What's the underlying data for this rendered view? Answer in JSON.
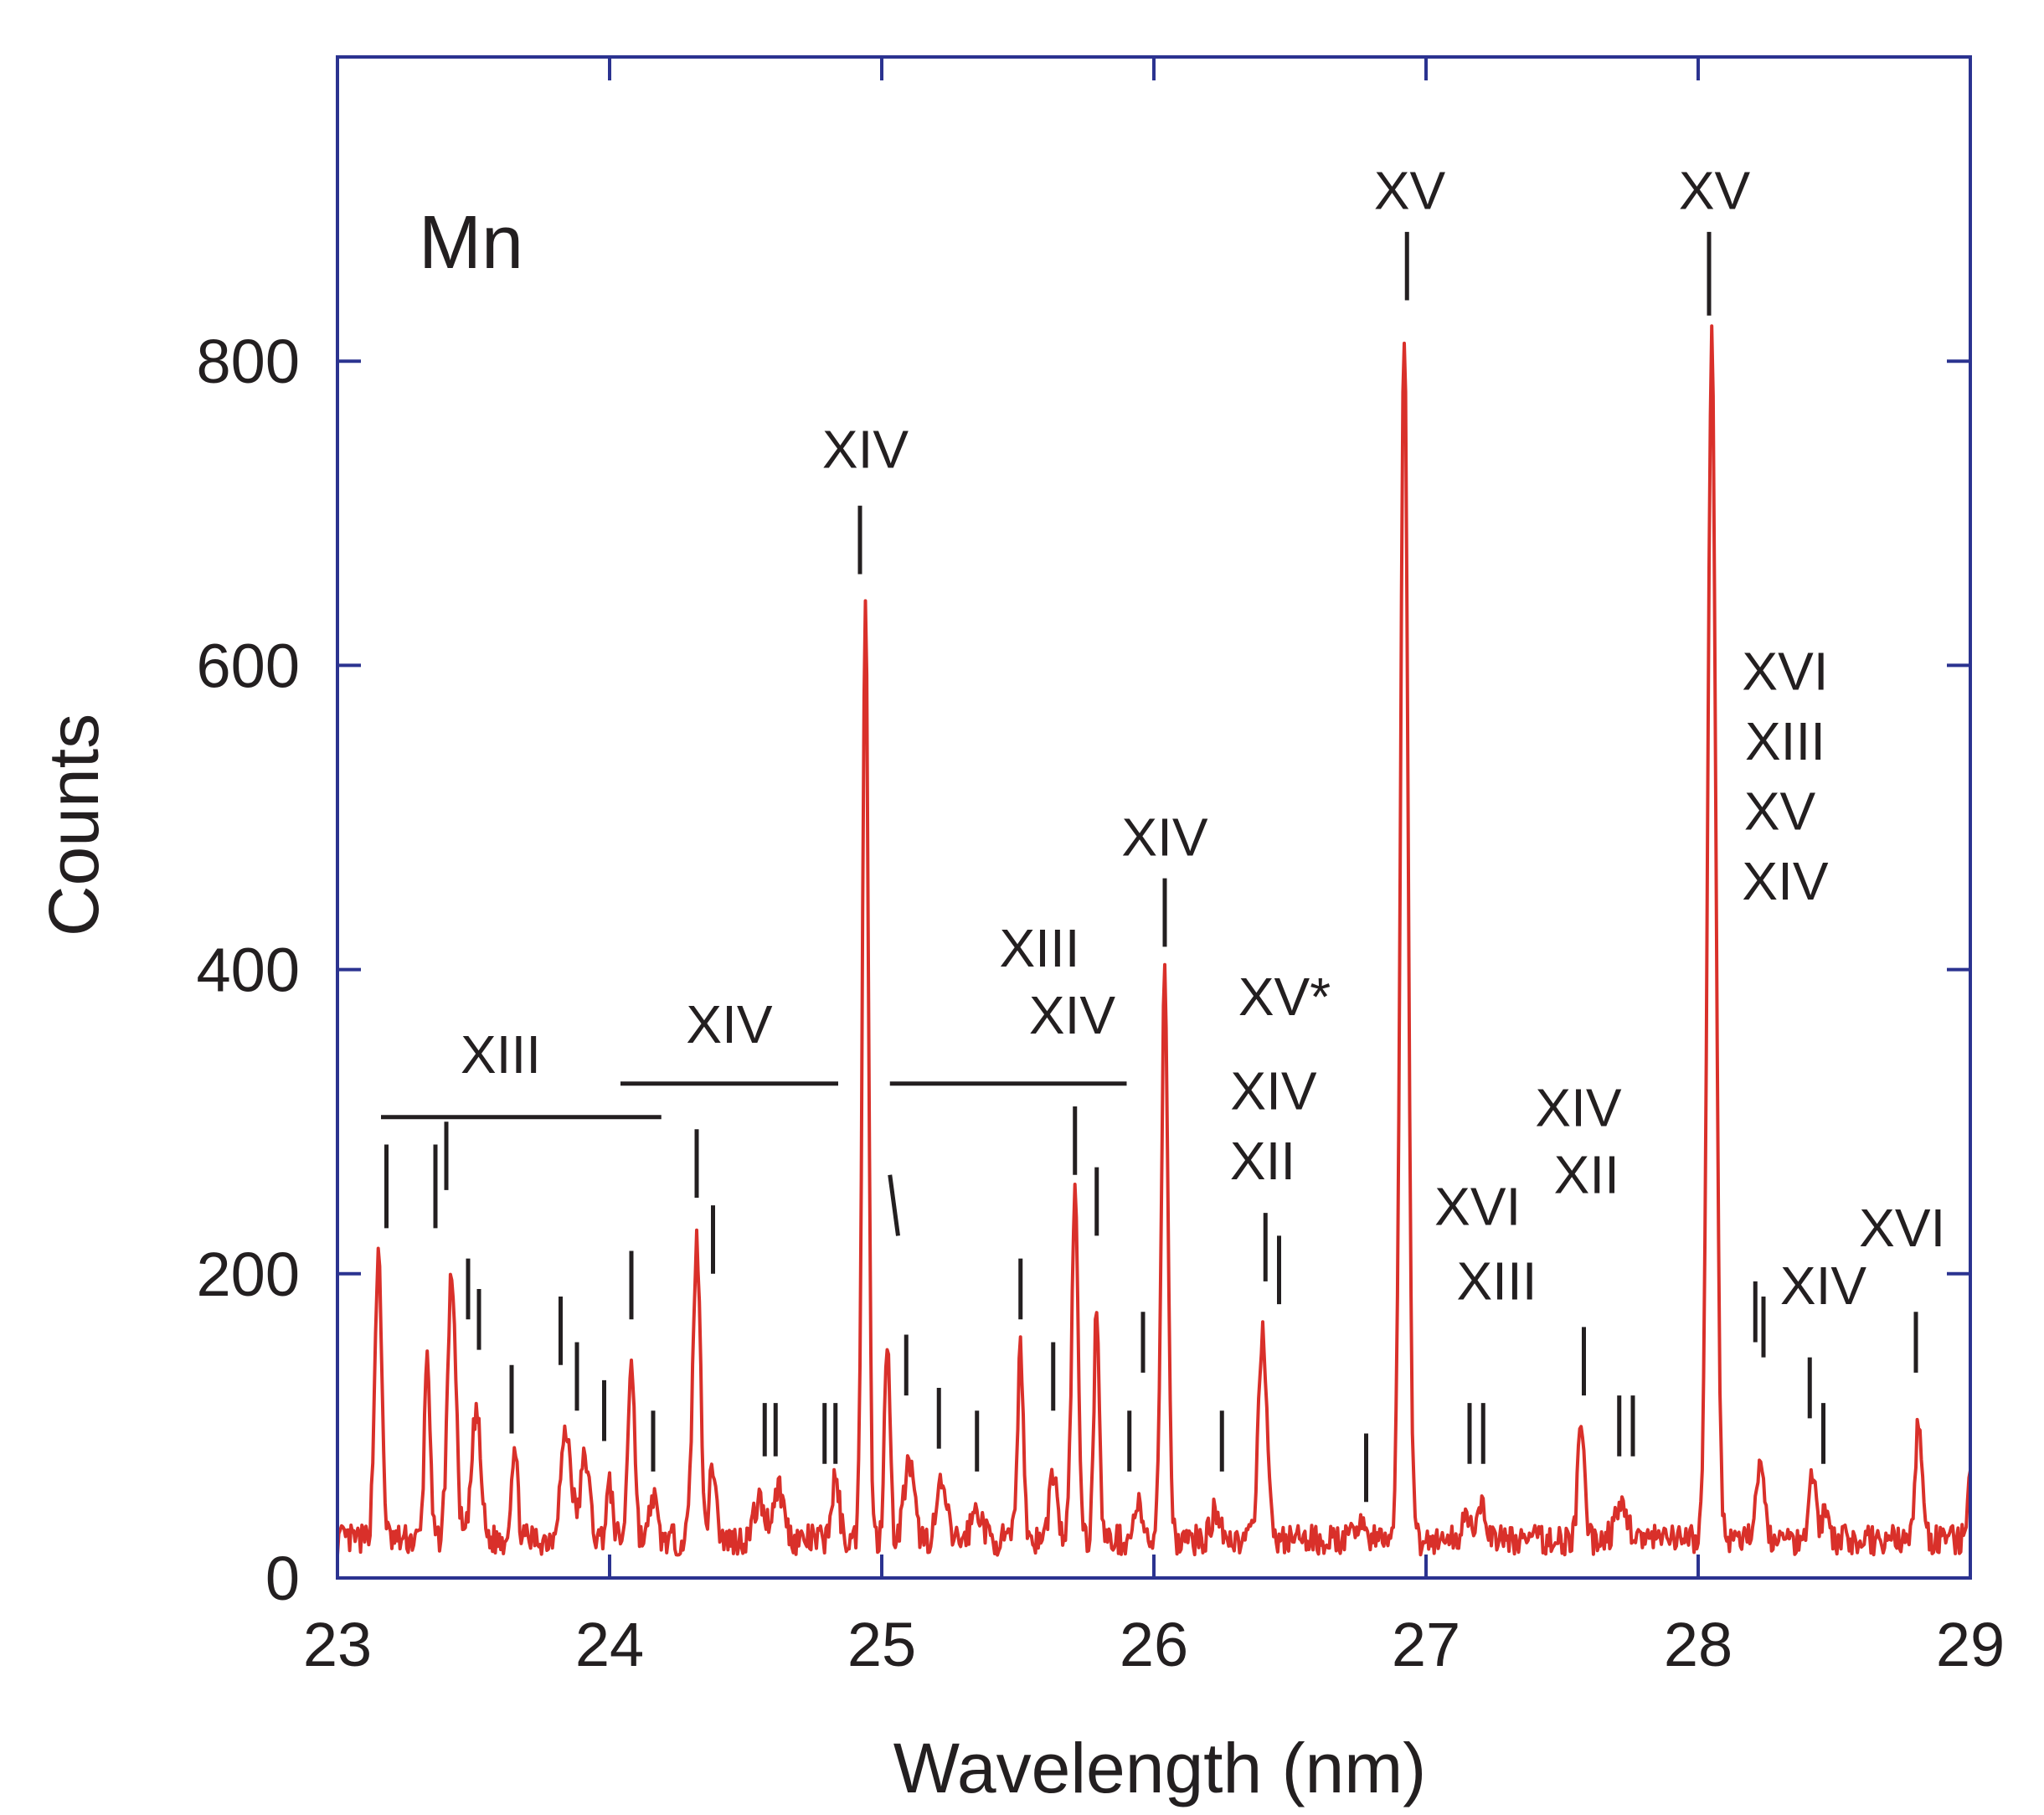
{
  "chart_data": {
    "type": "line",
    "xlabel": "Wavelength (nm)",
    "ylabel": "Counts",
    "element_label": "Mn",
    "xlim": [
      23,
      29
    ],
    "ylim": [
      0,
      1000
    ],
    "x_ticks": [
      23,
      24,
      25,
      26,
      27,
      28,
      29
    ],
    "y_ticks": [
      0,
      200,
      400,
      600,
      800
    ],
    "grid": false,
    "colors": {
      "line": "#d9302a",
      "frame": "#2b3390",
      "text": "#231f20"
    },
    "series": [
      {
        "baseline": 25,
        "peaks": [
          [
            23.15,
            185,
            0.013
          ],
          [
            23.33,
            125,
            0.01
          ],
          [
            23.42,
            175,
            0.015
          ],
          [
            23.51,
            85,
            0.016
          ],
          [
            23.65,
            60,
            0.012
          ],
          [
            23.84,
            70,
            0.02
          ],
          [
            23.91,
            55,
            0.016
          ],
          [
            24.0,
            35,
            0.012
          ],
          [
            24.08,
            120,
            0.012
          ],
          [
            24.16,
            30,
            0.012
          ],
          [
            24.32,
            195,
            0.014
          ],
          [
            24.38,
            50,
            0.012
          ],
          [
            24.55,
            25,
            0.02
          ],
          [
            24.62,
            35,
            0.02
          ],
          [
            24.83,
            40,
            0.014
          ],
          [
            24.94,
            625,
            0.011
          ],
          [
            25.02,
            135,
            0.01
          ],
          [
            25.1,
            50,
            0.018
          ],
          [
            25.22,
            35,
            0.018
          ],
          [
            25.35,
            20,
            0.02
          ],
          [
            25.51,
            125,
            0.011
          ],
          [
            25.63,
            45,
            0.014
          ],
          [
            25.71,
            225,
            0.012
          ],
          [
            25.79,
            155,
            0.01
          ],
          [
            25.94,
            25,
            0.012
          ],
          [
            26.04,
            375,
            0.012
          ],
          [
            26.23,
            20,
            0.018
          ],
          [
            26.4,
            140,
            0.015
          ],
          [
            26.76,
            15,
            0.015
          ],
          [
            26.92,
            795,
            0.014
          ],
          [
            27.15,
            20,
            0.015
          ],
          [
            27.21,
            20,
            0.015
          ],
          [
            27.57,
            75,
            0.012
          ],
          [
            27.72,
            20,
            0.025
          ],
          [
            28.05,
            790,
            0.015
          ],
          [
            28.23,
            55,
            0.014
          ],
          [
            28.42,
            45,
            0.014
          ],
          [
            28.47,
            20,
            0.012
          ],
          [
            28.81,
            75,
            0.013
          ],
          [
            29.0,
            40,
            0.01
          ]
        ]
      }
    ],
    "annotations": [
      {
        "text": "XIII",
        "x": 23.6,
        "y": 332
      },
      {
        "text": "XIV",
        "x": 24.44,
        "y": 352
      },
      {
        "text": "XIV",
        "x": 24.94,
        "y": 730
      },
      {
        "text": "XIII",
        "x": 25.58,
        "y": 402
      },
      {
        "text": "XIV",
        "x": 25.7,
        "y": 358
      },
      {
        "text": "XIV",
        "x": 26.04,
        "y": 475
      },
      {
        "text": "XV*",
        "x": 26.48,
        "y": 370
      },
      {
        "text": "XIV",
        "x": 26.44,
        "y": 308
      },
      {
        "text": "XII",
        "x": 26.4,
        "y": 262
      },
      {
        "text": "XV",
        "x": 26.94,
        "y": 900
      },
      {
        "text": "XVI",
        "x": 27.19,
        "y": 232
      },
      {
        "text": "XIII",
        "x": 27.26,
        "y": 183
      },
      {
        "text": "XIV",
        "x": 27.56,
        "y": 297
      },
      {
        "text": "XII",
        "x": 27.59,
        "y": 253
      },
      {
        "text": "XV",
        "x": 28.06,
        "y": 900
      },
      {
        "text": "XVI",
        "x": 28.32,
        "y": 584
      },
      {
        "text": "XIII",
        "x": 28.32,
        "y": 538
      },
      {
        "text": "XV",
        "x": 28.3,
        "y": 492
      },
      {
        "text": "XIV",
        "x": 28.32,
        "y": 446
      },
      {
        "text": "XIV",
        "x": 28.46,
        "y": 180
      },
      {
        "text": "XVI",
        "x": 28.75,
        "y": 218
      }
    ],
    "group_lines": [
      {
        "x1": 23.16,
        "x2": 24.19,
        "y": 303
      },
      {
        "x1": 24.04,
        "x2": 24.84,
        "y": 325
      },
      {
        "x1": 25.03,
        "x2": 25.9,
        "y": 325
      }
    ],
    "tick_marks": [
      {
        "x": 23.18,
        "y1": 230,
        "y2": 285
      },
      {
        "x": 23.36,
        "y1": 230,
        "y2": 285
      },
      {
        "x": 23.4,
        "y1": 255,
        "y2": 300
      },
      {
        "x": 23.48,
        "y1": 170,
        "y2": 210
      },
      {
        "x": 23.52,
        "y1": 150,
        "y2": 190
      },
      {
        "x": 23.64,
        "y1": 95,
        "y2": 140
      },
      {
        "x": 23.82,
        "y1": 140,
        "y2": 185
      },
      {
        "x": 23.88,
        "y1": 110,
        "y2": 155
      },
      {
        "x": 23.98,
        "y1": 90,
        "y2": 130
      },
      {
        "x": 24.08,
        "y1": 170,
        "y2": 215
      },
      {
        "x": 24.16,
        "y1": 70,
        "y2": 110
      },
      {
        "x": 24.32,
        "y1": 250,
        "y2": 295
      },
      {
        "x": 24.38,
        "y1": 200,
        "y2": 245
      },
      {
        "x": 24.57,
        "y1": 80,
        "y2": 115
      },
      {
        "x": 24.61,
        "y1": 80,
        "y2": 115
      },
      {
        "x": 24.79,
        "y1": 75,
        "y2": 115
      },
      {
        "x": 24.83,
        "y1": 75,
        "y2": 115
      },
      {
        "x": 24.92,
        "y1": 660,
        "y2": 705
      },
      {
        "x": 25.09,
        "y1": 120,
        "y2": 160
      },
      {
        "x": 25.21,
        "y1": 85,
        "y2": 125
      },
      {
        "x": 25.35,
        "y1": 70,
        "y2": 110
      },
      {
        "x": 25.51,
        "y1": 170,
        "y2": 210
      },
      {
        "x": 25.63,
        "y1": 110,
        "y2": 155
      },
      {
        "x": 25.71,
        "y1": 265,
        "y2": 310
      },
      {
        "x": 25.79,
        "y1": 225,
        "y2": 270
      },
      {
        "x": 25.91,
        "y1": 70,
        "y2": 110
      },
      {
        "x": 25.96,
        "y1": 135,
        "y2": 175
      },
      {
        "x": 26.04,
        "y1": 415,
        "y2": 460
      },
      {
        "x": 26.25,
        "y1": 70,
        "y2": 110
      },
      {
        "x": 26.41,
        "y1": 195,
        "y2": 240
      },
      {
        "x": 26.46,
        "y1": 180,
        "y2": 225
      },
      {
        "x": 26.78,
        "y1": 50,
        "y2": 95
      },
      {
        "x": 26.93,
        "y1": 840,
        "y2": 885
      },
      {
        "x": 27.16,
        "y1": 75,
        "y2": 115
      },
      {
        "x": 27.21,
        "y1": 75,
        "y2": 115
      },
      {
        "x": 27.58,
        "y1": 120,
        "y2": 165
      },
      {
        "x": 27.71,
        "y1": 80,
        "y2": 120
      },
      {
        "x": 27.76,
        "y1": 80,
        "y2": 120
      },
      {
        "x": 28.04,
        "y1": 830,
        "y2": 885
      },
      {
        "x": 28.21,
        "y1": 155,
        "y2": 195
      },
      {
        "x": 28.24,
        "y1": 145,
        "y2": 185
      },
      {
        "x": 28.41,
        "y1": 105,
        "y2": 145
      },
      {
        "x": 28.46,
        "y1": 75,
        "y2": 115
      },
      {
        "x": 28.8,
        "y1": 135,
        "y2": 175
      }
    ],
    "slash_mark": {
      "x1": 25.03,
      "y1": 265,
      "x2": 25.06,
      "y2": 225
    }
  }
}
